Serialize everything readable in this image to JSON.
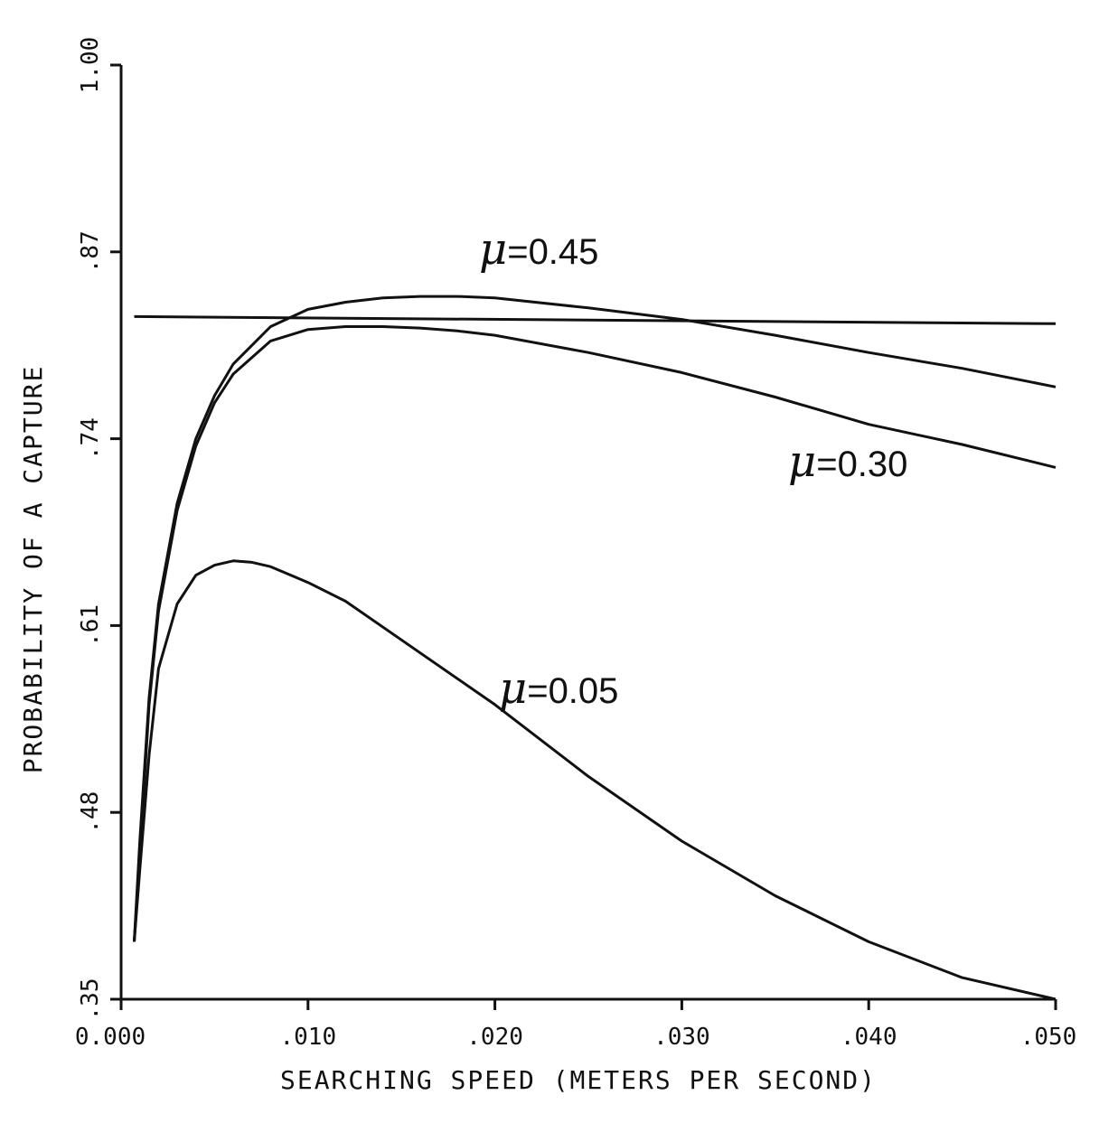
{
  "chart_data": {
    "type": "line",
    "title": "",
    "xlabel": "SEARCHING SPEED (METERS PER SECOND)",
    "ylabel": "PROBABILITY OF A CAPTURE",
    "xlim": [
      0.0,
      0.05
    ],
    "ylim": [
      0.35,
      1.0
    ],
    "x_ticks": [
      0.0,
      0.01,
      0.02,
      0.03,
      0.04,
      0.05
    ],
    "x_tick_labels": [
      "0.000",
      ".010",
      ".020",
      ".030",
      ".040",
      ".050"
    ],
    "y_ticks": [
      0.35,
      0.48,
      0.61,
      0.74,
      0.87,
      1.0
    ],
    "y_tick_labels": [
      ".35",
      ".48",
      ".61",
      ".74",
      ".87",
      "1.00"
    ],
    "grid": false,
    "legend": "none",
    "series": [
      {
        "name": "μ=0.45",
        "label_prefix": "μ",
        "label_suffix": "=0.45",
        "x": [
          0.0007,
          0.001,
          0.0015,
          0.002,
          0.003,
          0.004,
          0.005,
          0.006,
          0.008,
          0.01,
          0.012,
          0.014,
          0.016,
          0.018,
          0.02,
          0.025,
          0.03,
          0.035,
          0.04,
          0.045,
          0.05
        ],
        "y": [
          0.39,
          0.46,
          0.56,
          0.625,
          0.695,
          0.74,
          0.77,
          0.792,
          0.818,
          0.83,
          0.835,
          0.838,
          0.839,
          0.839,
          0.838,
          0.831,
          0.823,
          0.812,
          0.8,
          0.789,
          0.776
        ]
      },
      {
        "name": "μ=0.30",
        "label_prefix": "μ",
        "label_suffix": "=0.30",
        "x": [
          0.0007,
          0.001,
          0.0015,
          0.002,
          0.003,
          0.004,
          0.005,
          0.006,
          0.008,
          0.01,
          0.012,
          0.014,
          0.016,
          0.018,
          0.02,
          0.025,
          0.03,
          0.035,
          0.04,
          0.045,
          0.05
        ],
        "y": [
          0.39,
          0.45,
          0.555,
          0.62,
          0.69,
          0.735,
          0.765,
          0.785,
          0.808,
          0.816,
          0.818,
          0.818,
          0.817,
          0.815,
          0.812,
          0.8,
          0.786,
          0.769,
          0.75,
          0.736,
          0.72
        ]
      },
      {
        "name": "μ=0.05",
        "label_prefix": "μ",
        "label_suffix": "=0.05",
        "x": [
          0.0007,
          0.001,
          0.0015,
          0.002,
          0.003,
          0.004,
          0.005,
          0.006,
          0.007,
          0.008,
          0.01,
          0.012,
          0.015,
          0.02,
          0.025,
          0.03,
          0.035,
          0.04,
          0.045,
          0.05
        ],
        "y": [
          0.39,
          0.44,
          0.52,
          0.58,
          0.625,
          0.645,
          0.652,
          0.655,
          0.654,
          0.651,
          0.64,
          0.627,
          0.6,
          0.555,
          0.505,
          0.46,
          0.422,
          0.39,
          0.365,
          0.35
        ]
      },
      {
        "name": "",
        "label_prefix": "",
        "label_suffix": "",
        "x": [
          0.0007,
          0.05
        ],
        "y": [
          0.825,
          0.82
        ]
      }
    ]
  }
}
